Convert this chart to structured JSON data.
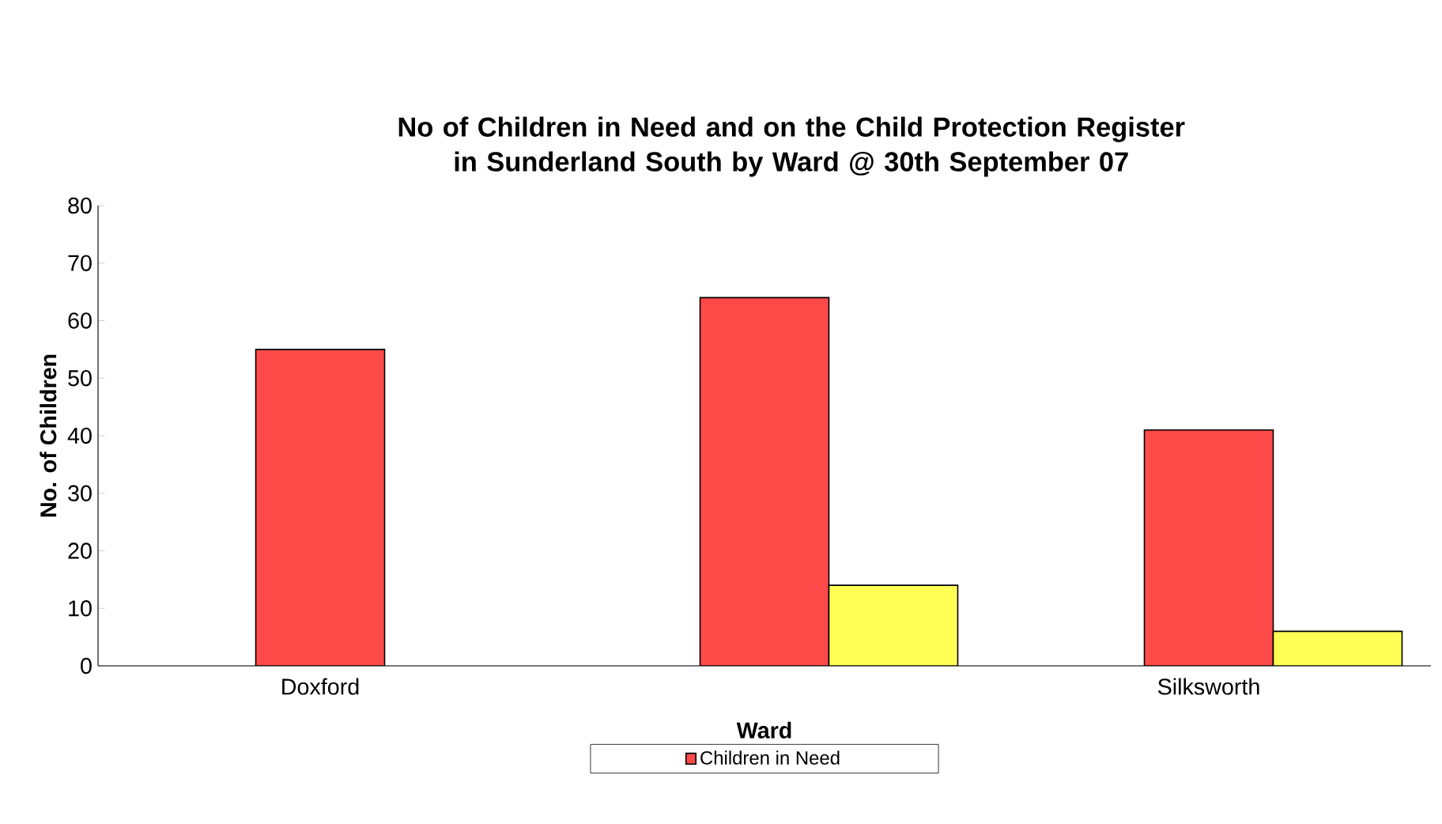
{
  "chart_data": {
    "type": "bar",
    "title": "No of Children in Need and on the Child Protection Register in Sunderland South by Ward @ 30th September 07",
    "xlabel": "Ward",
    "ylabel": "No. of Children",
    "categories": [
      "Doxford",
      null,
      "Silksworth"
    ],
    "series": [
      {
        "name": "Children in Need",
        "color": "#ff4a4a",
        "values": [
          55,
          64,
          41
        ]
      },
      {
        "color": "#ffff55",
        "values": [
          null,
          14,
          6
        ]
      }
    ],
    "ylim": [
      0,
      80
    ],
    "yticks": [
      0,
      10,
      20,
      30,
      40,
      50,
      60,
      70,
      80
    ],
    "legend": "bottom"
  }
}
